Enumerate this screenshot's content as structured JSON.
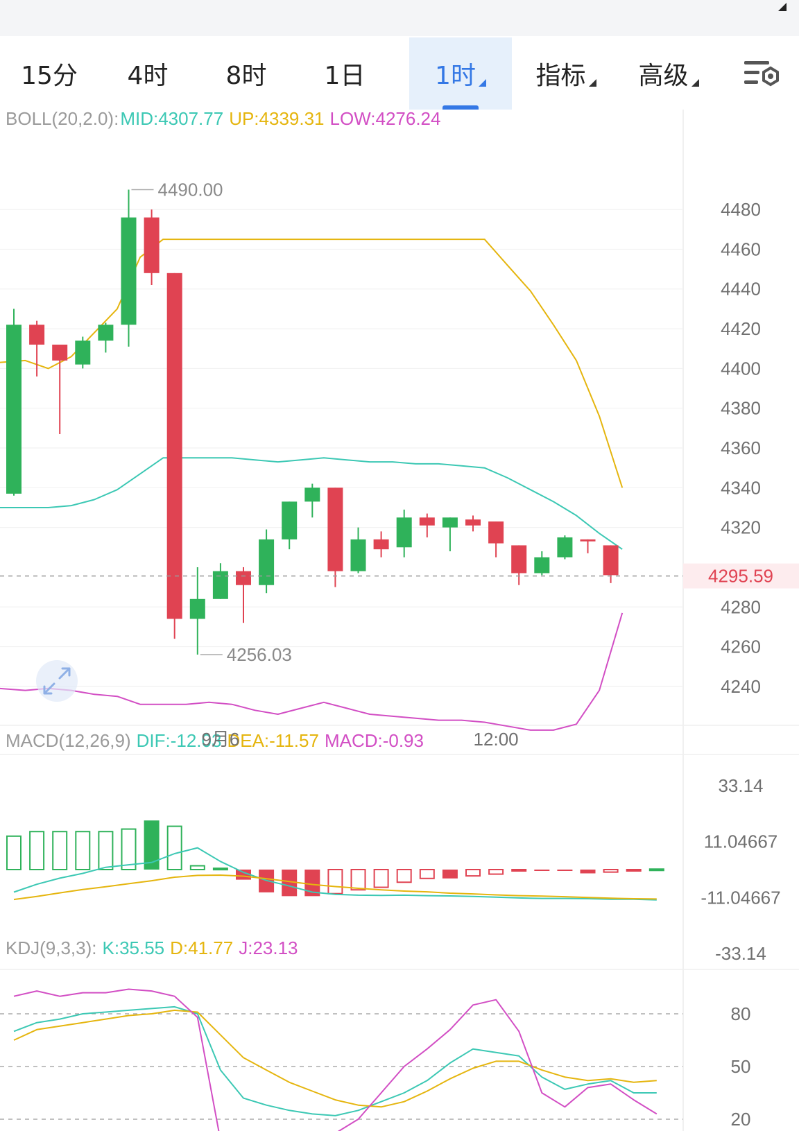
{
  "tabs": [
    {
      "label": "15分",
      "active": false,
      "dropdown": false
    },
    {
      "label": "4时",
      "active": false,
      "dropdown": false
    },
    {
      "label": "8时",
      "active": false,
      "dropdown": false
    },
    {
      "label": "1日",
      "active": false,
      "dropdown": false
    },
    {
      "label": "1时",
      "active": true,
      "dropdown": true
    },
    {
      "label": "指标",
      "active": false,
      "dropdown": true
    },
    {
      "label": "高级",
      "active": false,
      "dropdown": true
    }
  ],
  "settings_icon": "chart-settings-icon",
  "expand_icon": "expand-arrows-icon",
  "colors": {
    "up": "#2fb25a",
    "down": "#e04352",
    "mid": "#3cc8b4",
    "upper": "#e5b50e",
    "lower": "#d24ec4",
    "accent": "#3478e5"
  },
  "boll_legend": {
    "label": "BOLL(20,2.0):",
    "mid": "MID:4307.77",
    "up": "UP:4339.31",
    "low": "LOW:4276.24"
  },
  "macd_legend": {
    "label": "MACD(12,26,9)",
    "dif": "DIF:-12.03",
    "dea": "DEA:-11.57",
    "macd": "MACD:-0.93"
  },
  "kdj_legend": {
    "label": "KDJ(9,3,3):",
    "k": "K:35.55",
    "d": "D:41.77",
    "j": "J:23.13"
  },
  "chart_data": [
    {
      "type": "candlestick",
      "title": "BOLL(20,2.0)",
      "ylim": [
        4226,
        4494
      ],
      "yticks": [
        4480,
        4460,
        4440,
        4420,
        4400,
        4380,
        4360,
        4340,
        4320,
        4280,
        4260,
        4240
      ],
      "x_labels": [
        {
          "label": "9月6",
          "index": 9
        },
        {
          "label": "12:00",
          "index": 21
        }
      ],
      "current_price": "4295.59",
      "high_label": "4490.00",
      "low_label": "4256.03",
      "candles": [
        {
          "o": 4337,
          "h": 4430,
          "l": 4336,
          "c": 4422
        },
        {
          "o": 4422,
          "h": 4424,
          "l": 4396,
          "c": 4412
        },
        {
          "o": 4412,
          "h": 4412,
          "l": 4367,
          "c": 4404
        },
        {
          "o": 4402,
          "h": 4416,
          "l": 4400,
          "c": 4414
        },
        {
          "o": 4414,
          "h": 4423,
          "l": 4408,
          "c": 4422
        },
        {
          "o": 4422,
          "h": 4490,
          "l": 4411,
          "c": 4476
        },
        {
          "o": 4476,
          "h": 4480,
          "l": 4442,
          "c": 4448
        },
        {
          "o": 4448,
          "h": 4448,
          "l": 4264,
          "c": 4274
        },
        {
          "o": 4274,
          "h": 4300,
          "l": 4256,
          "c": 4284
        },
        {
          "o": 4284,
          "h": 4302,
          "l": 4284,
          "c": 4298
        },
        {
          "o": 4298,
          "h": 4300,
          "l": 4272,
          "c": 4291
        },
        {
          "o": 4291,
          "h": 4319,
          "l": 4287,
          "c": 4314
        },
        {
          "o": 4314,
          "h": 4333,
          "l": 4309,
          "c": 4333
        },
        {
          "o": 4333,
          "h": 4342,
          "l": 4325,
          "c": 4340
        },
        {
          "o": 4340,
          "h": 4340,
          "l": 4290,
          "c": 4298
        },
        {
          "o": 4298,
          "h": 4320,
          "l": 4297,
          "c": 4314
        },
        {
          "o": 4314,
          "h": 4318,
          "l": 4305,
          "c": 4309
        },
        {
          "o": 4310,
          "h": 4329,
          "l": 4305,
          "c": 4325
        },
        {
          "o": 4325,
          "h": 4327,
          "l": 4315,
          "c": 4321
        },
        {
          "o": 4320,
          "h": 4325,
          "l": 4308,
          "c": 4325
        },
        {
          "o": 4324,
          "h": 4326,
          "l": 4318,
          "c": 4321
        },
        {
          "o": 4323,
          "h": 4323,
          "l": 4305,
          "c": 4312
        },
        {
          "o": 4311,
          "h": 4311,
          "l": 4291,
          "c": 4297
        },
        {
          "o": 4297,
          "h": 4308,
          "l": 4296,
          "c": 4305
        },
        {
          "o": 4305,
          "h": 4316,
          "l": 4304,
          "c": 4315
        },
        {
          "o": 4314,
          "h": 4314,
          "l": 4307,
          "c": 4313
        },
        {
          "o": 4311,
          "h": 4311,
          "l": 4292,
          "c": 4296
        }
      ],
      "bands": {
        "x": [
          -0.7,
          0.5,
          1.5,
          2.5,
          3.5,
          4.5,
          5.5,
          6.5,
          7.5,
          8.5,
          9.5,
          10.5,
          11.5,
          12.5,
          13.5,
          14.5,
          15.5,
          16.5,
          17.5,
          18.5,
          19.5,
          20.5,
          21.5,
          22.5,
          23.5,
          24.5,
          25.5,
          26.5
        ],
        "upper": [
          4403,
          4404,
          4400,
          4406,
          4418,
          4430,
          4456,
          4465,
          4465,
          4465,
          4465,
          4465,
          4465,
          4465,
          4465,
          4465,
          4465,
          4465,
          4465,
          4465,
          4465,
          4465,
          4452,
          4439,
          4422,
          4404,
          4376,
          4340
        ],
        "mid": [
          4330,
          4330,
          4330,
          4331,
          4334,
          4339,
          4347,
          4355,
          4355,
          4355,
          4355,
          4354,
          4353,
          4354,
          4355,
          4354,
          4353,
          4353,
          4352,
          4352,
          4351,
          4350,
          4345,
          4339,
          4333,
          4326,
          4317,
          4309
        ],
        "lower": [
          4239,
          4238,
          4239,
          4238,
          4236,
          4235,
          4231,
          4231,
          4231,
          4232,
          4231,
          4228,
          4226,
          4229,
          4232,
          4229,
          4226,
          4225,
          4224,
          4223,
          4223,
          4222,
          4220,
          4218,
          4218,
          4221,
          4238,
          4277
        ]
      }
    },
    {
      "type": "bar",
      "title": "MACD(12,26,9)",
      "ylim": [
        -33.14,
        33.14
      ],
      "yticks": [
        "33.14",
        "11.04667",
        "-11.04667",
        "-33.14"
      ],
      "histogram": [
        13.2,
        15.0,
        15.0,
        15.0,
        15.0,
        16.0,
        19.4,
        17.1,
        1.5,
        0.5,
        -4.0,
        -9.0,
        -10.5,
        -10.5,
        -9.5,
        -8.0,
        -7.0,
        -5.0,
        -3.5,
        -3.5,
        -2.5,
        -1.8,
        -0.5,
        -0.5,
        -0.5,
        -1.5,
        -1.0,
        -0.4,
        0.2
      ],
      "dif": [
        -8.9,
        -5.8,
        -3.4,
        -1.5,
        0.9,
        1.9,
        2.8,
        6.3,
        8.6,
        3.2,
        -1.1,
        -4.3,
        -6.5,
        -8.9,
        -9.8,
        -10.1,
        -10.2,
        -10.1,
        -10.3,
        -10.4,
        -10.6,
        -10.9,
        -11.2,
        -11.4,
        -11.4,
        -11.5,
        -11.7,
        -11.7,
        -12.0
      ],
      "dea": [
        -11.8,
        -10.6,
        -9.2,
        -7.9,
        -6.8,
        -5.6,
        -4.4,
        -3.0,
        -2.3,
        -2.2,
        -2.6,
        -3.6,
        -4.7,
        -5.9,
        -6.7,
        -7.4,
        -8.0,
        -8.5,
        -8.8,
        -9.3,
        -9.6,
        -10.0,
        -10.3,
        -10.5,
        -10.7,
        -11.0,
        -11.3,
        -11.5,
        -11.6
      ]
    },
    {
      "type": "line",
      "title": "KDJ(9,3,3)",
      "ylim": [
        20,
        80
      ],
      "yticks": [
        "80",
        "50",
        "20"
      ],
      "k": [
        70,
        75,
        77,
        80,
        81,
        82,
        83,
        84,
        80,
        48,
        32,
        28,
        25,
        23,
        22,
        25,
        30,
        35,
        42,
        52,
        60,
        58,
        56,
        44,
        37,
        40,
        42,
        35,
        35
      ],
      "d": [
        65,
        71,
        73,
        75,
        77,
        79,
        80,
        82,
        81,
        68,
        55,
        48,
        41,
        36,
        31,
        28,
        27,
        30,
        36,
        43,
        49,
        53,
        53,
        48,
        44,
        42,
        43,
        41,
        42
      ],
      "j": [
        90,
        93,
        90,
        92,
        92,
        94,
        93,
        90,
        78,
        8,
        -5,
        0,
        3,
        6,
        12,
        20,
        35,
        50,
        60,
        71,
        85,
        88,
        70,
        35,
        27,
        38,
        40,
        31,
        23
      ]
    }
  ]
}
